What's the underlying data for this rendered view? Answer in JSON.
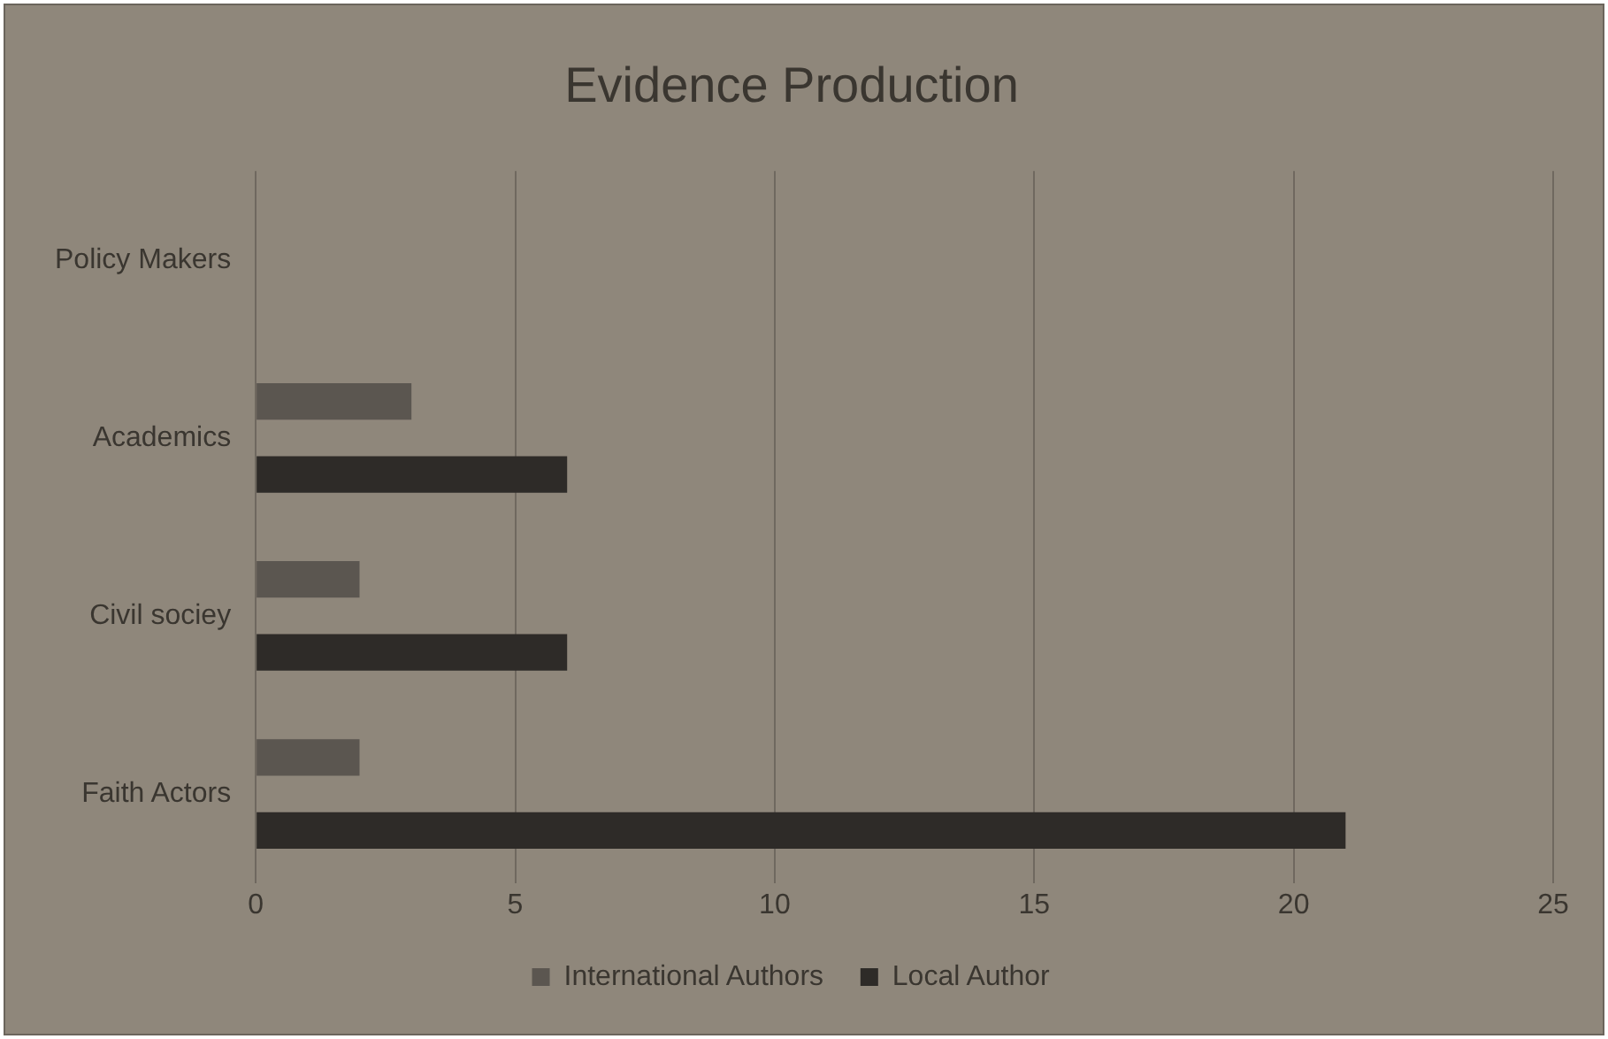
{
  "chart_data": {
    "type": "bar",
    "orientation": "horizontal",
    "title": "Evidence Production",
    "categories": [
      "Policy Makers",
      "Academics",
      "Civil sociey",
      "Faith Actors"
    ],
    "series": [
      {
        "name": "International Authors",
        "color": "#5b5650",
        "values": [
          0,
          3,
          2,
          2
        ]
      },
      {
        "name": "Local Author",
        "color": "#2e2b28",
        "values": [
          0,
          6,
          6,
          21
        ]
      }
    ],
    "xlim": [
      0,
      25
    ],
    "xticks": [
      0,
      5,
      10,
      15,
      20,
      25
    ],
    "grid": "x",
    "legend": "bottom"
  }
}
